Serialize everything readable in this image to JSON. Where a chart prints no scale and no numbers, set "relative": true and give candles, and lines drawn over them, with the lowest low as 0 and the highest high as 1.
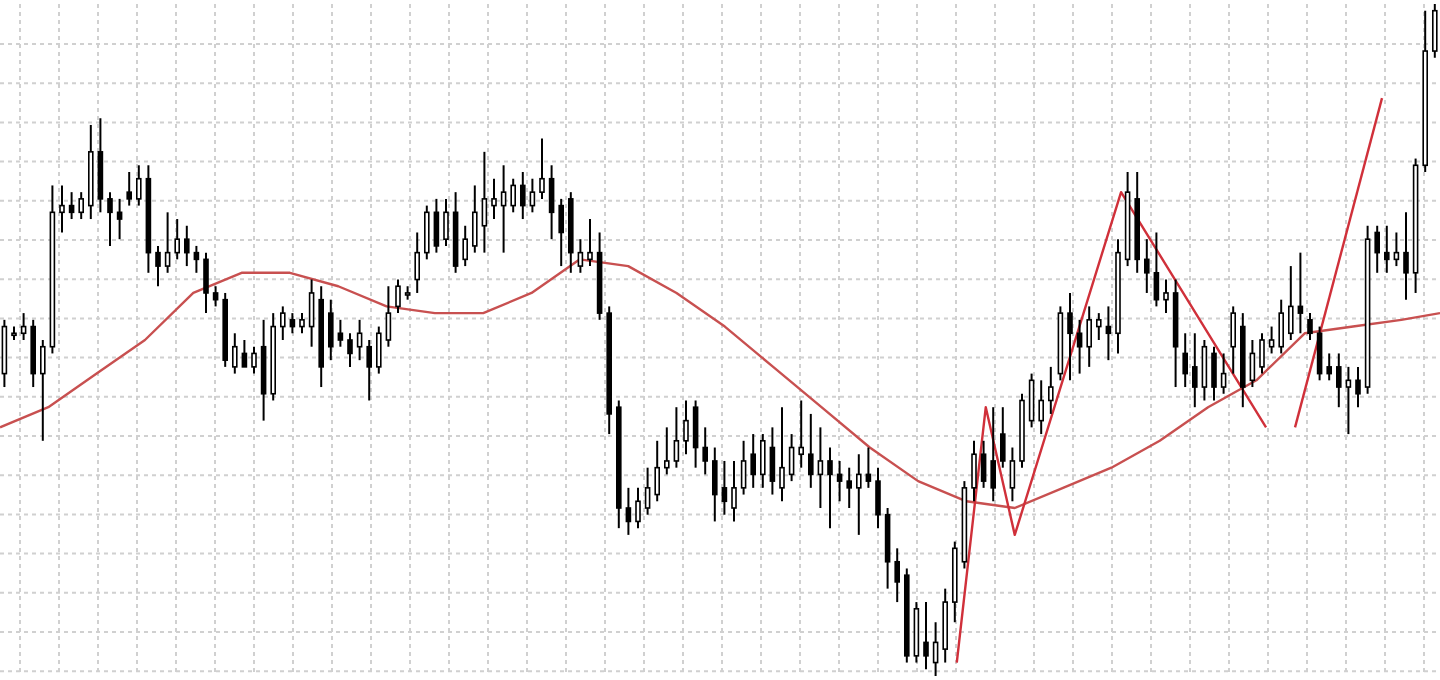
{
  "chart_data": {
    "type": "candlestick",
    "relative": true,
    "grid": true,
    "tick_labels": false,
    "color": "#000000",
    "categories": [
      null,
      null,
      null,
      null,
      null,
      null,
      null,
      null,
      null,
      null,
      null,
      null,
      null,
      null,
      null,
      null,
      null,
      null,
      null,
      null,
      null,
      null,
      null,
      null,
      null,
      null,
      null,
      null,
      null,
      null,
      null,
      null,
      null,
      null,
      null,
      null,
      null,
      null,
      null,
      null,
      null,
      null,
      null,
      null,
      null,
      null,
      null,
      null,
      null,
      null,
      null,
      null,
      null,
      null,
      null,
      null,
      null,
      null,
      null,
      null,
      null,
      null,
      null,
      null,
      null,
      null,
      null,
      null,
      null,
      null,
      null,
      null,
      null,
      null,
      null,
      null,
      null,
      null,
      null,
      null,
      null,
      null,
      null,
      null,
      null,
      null,
      null,
      null,
      null,
      null,
      null,
      null,
      null,
      null,
      null,
      null,
      null,
      null,
      null,
      null,
      null,
      null,
      null,
      null,
      null,
      null,
      null,
      null,
      null,
      null,
      null,
      null,
      null,
      null,
      null,
      null,
      null,
      null,
      null,
      null,
      null,
      null,
      null,
      null,
      null,
      null,
      null,
      null,
      null,
      null,
      null,
      null,
      null,
      null,
      null,
      null,
      null,
      null,
      null,
      null,
      null,
      null,
      null,
      null,
      null,
      null,
      null,
      null,
      null,
      null
    ],
    "ohlc": [
      [
        0.45,
        0.53,
        0.43,
        0.52
      ],
      [
        0.51,
        0.52,
        0.5,
        0.51
      ],
      [
        0.51,
        0.54,
        0.5,
        0.52
      ],
      [
        0.52,
        0.53,
        0.43,
        0.45
      ],
      [
        0.45,
        0.5,
        0.35,
        0.49
      ],
      [
        0.49,
        0.73,
        0.48,
        0.69
      ],
      [
        0.69,
        0.73,
        0.66,
        0.7
      ],
      [
        0.7,
        0.72,
        0.68,
        0.69
      ],
      [
        0.69,
        0.72,
        0.68,
        0.71
      ],
      [
        0.7,
        0.82,
        0.68,
        0.78
      ],
      [
        0.78,
        0.83,
        0.69,
        0.71
      ],
      [
        0.71,
        0.72,
        0.64,
        0.69
      ],
      [
        0.69,
        0.71,
        0.65,
        0.68
      ],
      [
        0.72,
        0.75,
        0.7,
        0.71
      ],
      [
        0.71,
        0.76,
        0.7,
        0.74
      ],
      [
        0.74,
        0.76,
        0.6,
        0.63
      ],
      [
        0.63,
        0.64,
        0.58,
        0.61
      ],
      [
        0.61,
        0.69,
        0.6,
        0.63
      ],
      [
        0.63,
        0.68,
        0.62,
        0.65
      ],
      [
        0.65,
        0.67,
        0.61,
        0.63
      ],
      [
        0.63,
        0.64,
        0.6,
        0.62
      ],
      [
        0.62,
        0.63,
        0.54,
        0.57
      ],
      [
        0.57,
        0.58,
        0.55,
        0.56
      ],
      [
        0.56,
        0.57,
        0.46,
        0.47
      ],
      [
        0.46,
        0.51,
        0.45,
        0.49
      ],
      [
        0.48,
        0.5,
        0.46,
        0.46
      ],
      [
        0.46,
        0.49,
        0.45,
        0.48
      ],
      [
        0.49,
        0.53,
        0.38,
        0.42
      ],
      [
        0.42,
        0.54,
        0.41,
        0.52
      ],
      [
        0.52,
        0.55,
        0.5,
        0.54
      ],
      [
        0.53,
        0.54,
        0.51,
        0.52
      ],
      [
        0.52,
        0.54,
        0.51,
        0.53
      ],
      [
        0.52,
        0.59,
        0.49,
        0.57
      ],
      [
        0.56,
        0.58,
        0.43,
        0.46
      ],
      [
        0.54,
        0.56,
        0.47,
        0.49
      ],
      [
        0.51,
        0.53,
        0.49,
        0.5
      ],
      [
        0.5,
        0.51,
        0.46,
        0.48
      ],
      [
        0.49,
        0.53,
        0.47,
        0.51
      ],
      [
        0.49,
        0.5,
        0.41,
        0.46
      ],
      [
        0.46,
        0.52,
        0.45,
        0.51
      ],
      [
        0.5,
        0.58,
        0.49,
        0.54
      ],
      [
        0.55,
        0.59,
        0.54,
        0.58
      ],
      [
        0.57,
        0.58,
        0.56,
        0.57
      ],
      [
        0.59,
        0.66,
        0.57,
        0.63
      ],
      [
        0.63,
        0.7,
        0.62,
        0.69
      ],
      [
        0.69,
        0.71,
        0.63,
        0.64
      ],
      [
        0.65,
        0.71,
        0.64,
        0.69
      ],
      [
        0.69,
        0.72,
        0.6,
        0.61
      ],
      [
        0.62,
        0.67,
        0.61,
        0.65
      ],
      [
        0.64,
        0.73,
        0.63,
        0.69
      ],
      [
        0.67,
        0.78,
        0.63,
        0.71
      ],
      [
        0.7,
        0.74,
        0.68,
        0.71
      ],
      [
        0.7,
        0.76,
        0.63,
        0.72
      ],
      [
        0.7,
        0.74,
        0.69,
        0.73
      ],
      [
        0.73,
        0.75,
        0.68,
        0.7
      ],
      [
        0.7,
        0.74,
        0.69,
        0.72
      ],
      [
        0.72,
        0.8,
        0.71,
        0.74
      ],
      [
        0.74,
        0.76,
        0.65,
        0.69
      ],
      [
        0.7,
        0.71,
        0.61,
        0.66
      ],
      [
        0.71,
        0.72,
        0.6,
        0.63
      ],
      [
        0.61,
        0.65,
        0.6,
        0.63
      ],
      [
        0.62,
        0.68,
        0.61,
        0.63
      ],
      [
        0.63,
        0.66,
        0.53,
        0.54
      ],
      [
        0.54,
        0.55,
        0.36,
        0.39
      ],
      [
        0.4,
        0.41,
        0.22,
        0.25
      ],
      [
        0.25,
        0.28,
        0.21,
        0.23
      ],
      [
        0.23,
        0.28,
        0.22,
        0.26
      ],
      [
        0.25,
        0.31,
        0.24,
        0.28
      ],
      [
        0.27,
        0.35,
        0.26,
        0.31
      ],
      [
        0.31,
        0.37,
        0.3,
        0.32
      ],
      [
        0.32,
        0.4,
        0.31,
        0.35
      ],
      [
        0.35,
        0.41,
        0.33,
        0.38
      ],
      [
        0.4,
        0.41,
        0.31,
        0.34
      ],
      [
        0.34,
        0.37,
        0.3,
        0.32
      ],
      [
        0.32,
        0.34,
        0.23,
        0.27
      ],
      [
        0.28,
        0.32,
        0.24,
        0.26
      ],
      [
        0.25,
        0.32,
        0.23,
        0.28
      ],
      [
        0.28,
        0.35,
        0.27,
        0.32
      ],
      [
        0.33,
        0.36,
        0.28,
        0.3
      ],
      [
        0.3,
        0.36,
        0.28,
        0.35
      ],
      [
        0.34,
        0.37,
        0.27,
        0.29
      ],
      [
        0.28,
        0.4,
        0.26,
        0.31
      ],
      [
        0.3,
        0.36,
        0.29,
        0.34
      ],
      [
        0.33,
        0.41,
        0.31,
        0.34
      ],
      [
        0.33,
        0.39,
        0.28,
        0.3
      ],
      [
        0.3,
        0.37,
        0.25,
        0.32
      ],
      [
        0.32,
        0.34,
        0.22,
        0.3
      ],
      [
        0.3,
        0.32,
        0.26,
        0.29
      ],
      [
        0.29,
        0.31,
        0.25,
        0.28
      ],
      [
        0.28,
        0.33,
        0.21,
        0.3
      ],
      [
        0.3,
        0.34,
        0.28,
        0.29
      ],
      [
        0.29,
        0.31,
        0.22,
        0.24
      ],
      [
        0.24,
        0.25,
        0.13,
        0.17
      ],
      [
        0.17,
        0.19,
        0.11,
        0.14
      ],
      [
        0.15,
        0.16,
        0.02,
        0.03
      ],
      [
        0.03,
        0.11,
        0.02,
        0.1
      ],
      [
        0.05,
        0.11,
        0.01,
        0.03
      ],
      [
        0.02,
        0.08,
        0,
        0.05
      ],
      [
        0.04,
        0.13,
        0.02,
        0.11
      ],
      [
        0.11,
        0.2,
        0.08,
        0.19
      ],
      [
        0.17,
        0.29,
        0.16,
        0.28
      ],
      [
        0.28,
        0.35,
        0.26,
        0.33
      ],
      [
        0.33,
        0.35,
        0.28,
        0.29
      ],
      [
        0.32,
        0.4,
        0.26,
        0.28
      ],
      [
        0.36,
        0.4,
        0.31,
        0.32
      ],
      [
        0.28,
        0.34,
        0.26,
        0.32
      ],
      [
        0.32,
        0.42,
        0.31,
        0.41
      ],
      [
        0.38,
        0.45,
        0.37,
        0.44
      ],
      [
        0.38,
        0.44,
        0.36,
        0.41
      ],
      [
        0.41,
        0.46,
        0.39,
        0.43
      ],
      [
        0.45,
        0.55,
        0.44,
        0.54
      ],
      [
        0.54,
        0.57,
        0.44,
        0.51
      ],
      [
        0.51,
        0.53,
        0.45,
        0.49
      ],
      [
        0.49,
        0.55,
        0.46,
        0.53
      ],
      [
        0.52,
        0.54,
        0.5,
        0.53
      ],
      [
        0.52,
        0.55,
        0.47,
        0.51
      ],
      [
        0.51,
        0.65,
        0.48,
        0.63
      ],
      [
        0.62,
        0.75,
        0.61,
        0.72
      ],
      [
        0.71,
        0.75,
        0.6,
        0.62
      ],
      [
        0.62,
        0.65,
        0.57,
        0.6
      ],
      [
        0.6,
        0.66,
        0.55,
        0.56
      ],
      [
        0.56,
        0.59,
        0.54,
        0.57
      ],
      [
        0.57,
        0.59,
        0.43,
        0.49
      ],
      [
        0.48,
        0.51,
        0.43,
        0.45
      ],
      [
        0.46,
        0.51,
        0.4,
        0.43
      ],
      [
        0.43,
        0.5,
        0.41,
        0.49
      ],
      [
        0.48,
        0.49,
        0.41,
        0.43
      ],
      [
        0.43,
        0.48,
        0.42,
        0.45
      ],
      [
        0.49,
        0.55,
        0.45,
        0.54
      ],
      [
        0.52,
        0.54,
        0.4,
        0.43
      ],
      [
        0.44,
        0.5,
        0.43,
        0.48
      ],
      [
        0.46,
        0.51,
        0.45,
        0.5
      ],
      [
        0.49,
        0.52,
        0.48,
        0.5
      ],
      [
        0.49,
        0.56,
        0.48,
        0.54
      ],
      [
        0.51,
        0.61,
        0.5,
        0.55
      ],
      [
        0.55,
        0.63,
        0.51,
        0.54
      ],
      [
        0.53,
        0.54,
        0.5,
        0.51
      ],
      [
        0.51,
        0.52,
        0.44,
        0.45
      ],
      [
        0.46,
        0.48,
        0.44,
        0.45
      ],
      [
        0.46,
        0.48,
        0.4,
        0.43
      ],
      [
        0.43,
        0.46,
        0.36,
        0.44
      ],
      [
        0.44,
        0.46,
        0.4,
        0.42
      ],
      [
        0.43,
        0.67,
        0.42,
        0.65
      ],
      [
        0.66,
        0.67,
        0.6,
        0.63
      ],
      [
        0.63,
        0.67,
        0.6,
        0.62
      ],
      [
        0.62,
        0.66,
        0.61,
        0.63
      ],
      [
        0.63,
        0.69,
        0.56,
        0.6
      ],
      [
        0.6,
        0.77,
        0.57,
        0.76
      ],
      [
        0.76,
        0.99,
        0.75,
        0.93
      ],
      [
        0.93,
        1,
        0.92,
        0.99
      ]
    ],
    "series": [
      {
        "type": "line",
        "color": "#c85050",
        "values": [
          0.37,
          null,
          null,
          null,
          null,
          0.4,
          null,
          null,
          null,
          null,
          0.45,
          null,
          null,
          null,
          null,
          0.5,
          null,
          null,
          null,
          null,
          0.57,
          null,
          null,
          null,
          null,
          0.6,
          null,
          null,
          null,
          null,
          0.6,
          null,
          null,
          null,
          null,
          0.58,
          null,
          null,
          null,
          null,
          0.55,
          null,
          null,
          null,
          null,
          0.54,
          null,
          null,
          null,
          null,
          0.54,
          null,
          null,
          null,
          null,
          0.57,
          null,
          null,
          null,
          null,
          0.62,
          null,
          null,
          null,
          null,
          0.61,
          null,
          null,
          null,
          null,
          0.57,
          null,
          null,
          null,
          null,
          0.52,
          null,
          null,
          null,
          null,
          0.46,
          null,
          null,
          null,
          null,
          0.4,
          null,
          null,
          null,
          null,
          0.34,
          null,
          null,
          null,
          null,
          0.29,
          null,
          null,
          null,
          null,
          0.26,
          null,
          null,
          null,
          null,
          0.25,
          null,
          null,
          null,
          null,
          0.28,
          null,
          null,
          null,
          null,
          0.31,
          null,
          null,
          null,
          null,
          0.35,
          null,
          null,
          null,
          null,
          0.4,
          null,
          null,
          null,
          null,
          0.44,
          null,
          null,
          null,
          null,
          0.51,
          null,
          null,
          null,
          null,
          0.52,
          null,
          null,
          null,
          null,
          0.53,
          null,
          null,
          null,
          0.54
        ]
      },
      {
        "type": "line",
        "color": "#d0303a",
        "values": [
          null,
          null,
          null,
          null,
          null,
          null,
          null,
          null,
          null,
          null,
          null,
          null,
          null,
          null,
          null,
          null,
          null,
          null,
          null,
          null,
          null,
          null,
          null,
          null,
          null,
          null,
          null,
          null,
          null,
          null,
          null,
          null,
          null,
          null,
          null,
          null,
          null,
          null,
          null,
          null,
          null,
          null,
          null,
          null,
          null,
          null,
          null,
          null,
          null,
          null,
          null,
          null,
          null,
          null,
          null,
          null,
          null,
          null,
          null,
          null,
          null,
          null,
          null,
          null,
          null,
          null,
          null,
          null,
          null,
          null,
          null,
          null,
          null,
          null,
          null,
          null,
          null,
          null,
          null,
          null,
          null,
          null,
          null,
          null,
          null,
          null,
          null,
          null,
          null,
          null,
          null,
          null,
          null,
          null,
          null,
          null,
          null,
          null,
          null,
          0.02,
          null,
          null,
          0.4,
          null,
          null,
          0.21,
          null,
          null,
          null,
          null,
          null,
          null,
          null,
          null,
          null,
          null,
          0.72,
          null,
          null,
          null,
          null,
          null,
          null,
          null,
          null,
          null,
          null,
          null,
          null,
          null,
          null,
          0.37,
          null,
          null,
          null,
          null,
          null,
          null,
          null,
          null,
          null,
          null,
          null,
          null,
          null,
          null,
          null,
          null,
          null,
          null
        ]
      },
      {
        "type": "line",
        "color": "#d0303a",
        "values": [
          null,
          null,
          null,
          null,
          null,
          null,
          null,
          null,
          null,
          null,
          null,
          null,
          null,
          null,
          null,
          null,
          null,
          null,
          null,
          null,
          null,
          null,
          null,
          null,
          null,
          null,
          null,
          null,
          null,
          null,
          null,
          null,
          null,
          null,
          null,
          null,
          null,
          null,
          null,
          null,
          null,
          null,
          null,
          null,
          null,
          null,
          null,
          null,
          null,
          null,
          null,
          null,
          null,
          null,
          null,
          null,
          null,
          null,
          null,
          null,
          null,
          null,
          null,
          null,
          null,
          null,
          null,
          null,
          null,
          null,
          null,
          null,
          null,
          null,
          null,
          null,
          null,
          null,
          null,
          null,
          null,
          null,
          null,
          null,
          null,
          null,
          null,
          null,
          null,
          null,
          null,
          null,
          null,
          null,
          null,
          null,
          null,
          null,
          null,
          null,
          null,
          null,
          null,
          null,
          null,
          null,
          null,
          null,
          null,
          null,
          null,
          null,
          null,
          null,
          null,
          null,
          null,
          null,
          null,
          null,
          null,
          null,
          null,
          null,
          null,
          null,
          null,
          null,
          null,
          null,
          null,
          null,
          null,
          null,
          0.37,
          null,
          null,
          null,
          null,
          null,
          null,
          null,
          null,
          0.86,
          null,
          null,
          null,
          null,
          null,
          null
        ]
      }
    ]
  }
}
